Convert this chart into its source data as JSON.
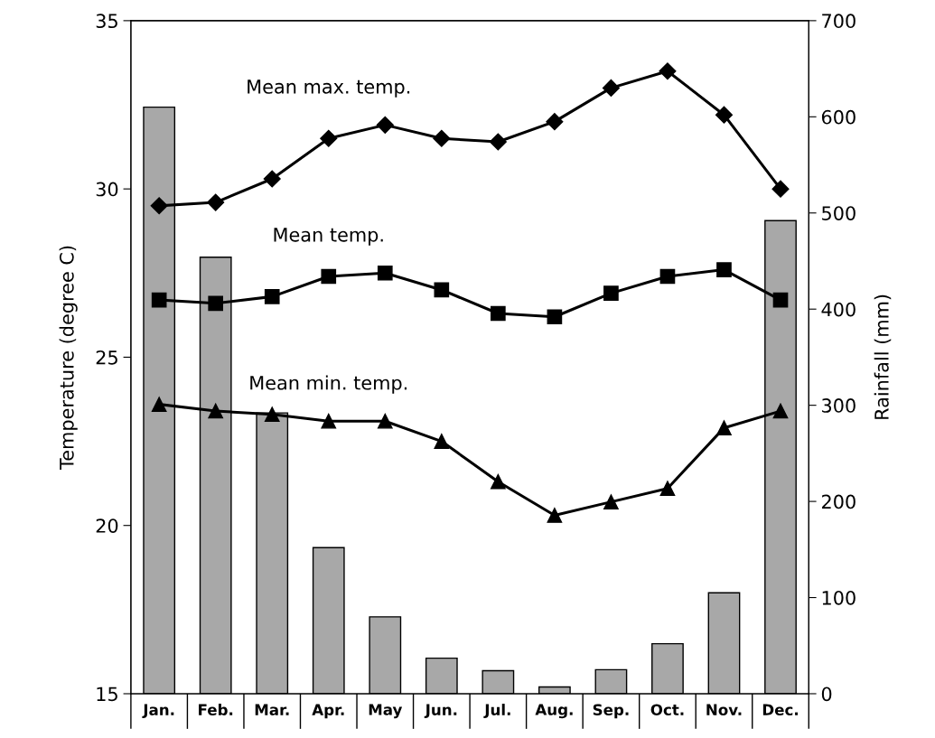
{
  "chart_data": {
    "type": "line",
    "ylabel": "Temperature (degree C)",
    "y2label": "Rainfall (mm)",
    "categories": [
      "Jan.",
      "Feb.",
      "Mar.",
      "Apr.",
      "May",
      "Jun.",
      "Jul.",
      "Aug.",
      "Sep.",
      "Oct.",
      "Nov.",
      "Dec."
    ],
    "ylim": [
      15,
      35
    ],
    "yticks": [
      15,
      20,
      25,
      30,
      35
    ],
    "y2lim": [
      0,
      700
    ],
    "y2ticks": [
      0,
      100,
      200,
      300,
      400,
      500,
      600,
      700
    ],
    "grid": false,
    "series": [
      {
        "name": null,
        "type": "bar",
        "axis": "y2",
        "color": "#a8a8a8",
        "values": [
          610,
          454,
          292,
          152,
          80,
          37,
          24,
          7,
          25,
          52,
          105,
          492
        ]
      },
      {
        "name": "Mean max. temp.",
        "axis": "y",
        "color": "#000000",
        "marker": "diamond",
        "values": [
          29.5,
          29.6,
          30.3,
          31.5,
          31.9,
          31.5,
          31.4,
          32.0,
          33.0,
          33.5,
          32.2,
          30.0
        ]
      },
      {
        "name": "Mean temp.",
        "axis": "y",
        "color": "#000000",
        "marker": "square",
        "values": [
          26.7,
          26.6,
          26.8,
          27.4,
          27.5,
          27.0,
          26.3,
          26.2,
          26.9,
          27.4,
          27.6,
          26.7
        ]
      },
      {
        "name": "Mean min. temp.",
        "axis": "y",
        "color": "#000000",
        "marker": "triangle",
        "values": [
          23.6,
          23.4,
          23.3,
          23.1,
          23.1,
          22.5,
          21.3,
          20.3,
          20.7,
          21.1,
          22.9,
          23.4
        ]
      }
    ]
  }
}
